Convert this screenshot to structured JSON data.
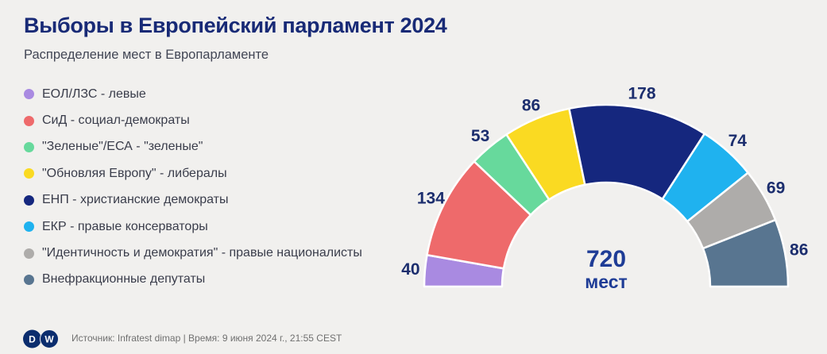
{
  "header": {
    "title": "Выборы в Европейский парламент 2024",
    "subtitle": "Распределение мест в Европарламенте"
  },
  "legend": {
    "position": "left",
    "items": [
      {
        "label": "ЕОЛ/ЛЗС - левые",
        "color": "#a98ae1"
      },
      {
        "label": "СиД - социал-демократы",
        "color": "#ee6a6b"
      },
      {
        "label": "\"Зеленые\"/ЕСА - \"зеленые\"",
        "color": "#67d99c"
      },
      {
        "label": "\"Обновляя Европу\" - либералы",
        "color": "#fada22"
      },
      {
        "label": "ЕНП - христианские демократы",
        "color": "#15277e"
      },
      {
        "label": "ЕКР - правые консерваторы",
        "color": "#1fb2ef"
      },
      {
        "label": "\"Идентичность и демократия\" - правые националисты",
        "color": "#aeacaa"
      },
      {
        "label": "Внефракционные депутаты",
        "color": "#587590"
      }
    ]
  },
  "chart_data": {
    "type": "pie",
    "layout": "semicircle-donut",
    "title": "Выборы в Европейский парламент 2024",
    "subtitle": "Распределение мест в Европарламенте",
    "total_seats": 720,
    "angle_span_degrees": 180,
    "center_label": {
      "value": "720",
      "unit": "мест"
    },
    "segments": [
      {
        "party": "ЕОЛ/ЛЗС",
        "group": "левые",
        "seats": 40,
        "color": "#a98ae1"
      },
      {
        "party": "СиД",
        "group": "социал-демократы",
        "seats": 134,
        "color": "#ee6a6b"
      },
      {
        "party": "\"Зеленые\"/ЕСА",
        "group": "\"зеленые\"",
        "seats": 53,
        "color": "#67d99c"
      },
      {
        "party": "\"Обновляя Европу\"",
        "group": "либералы",
        "seats": 86,
        "color": "#fada22"
      },
      {
        "party": "ЕНП",
        "group": "христианские демократы",
        "seats": 178,
        "color": "#15277e"
      },
      {
        "party": "ЕКР",
        "group": "правые консерваторы",
        "seats": 74,
        "color": "#1fb2ef"
      },
      {
        "party": "\"Идентичность и демократия\"",
        "group": "правые националисты",
        "seats": 69,
        "color": "#aeacaa"
      },
      {
        "party": "Внефракционные депутаты",
        "group": "",
        "seats": 86,
        "color": "#587590"
      }
    ],
    "value_label_color": "#1c2e6e",
    "grid": false
  },
  "footer": {
    "logo": {
      "d": "D",
      "w": "W",
      "color": "#0b2d6e"
    },
    "source": "Источник: Infratest dimap | Время: 9 июня 2024 г., 21:55 CEST"
  }
}
